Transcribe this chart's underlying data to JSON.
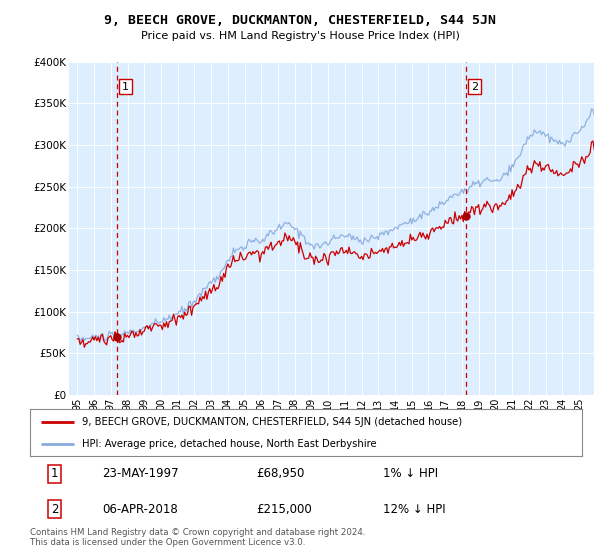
{
  "title": "9, BEECH GROVE, DUCKMANTON, CHESTERFIELD, S44 5JN",
  "subtitle": "Price paid vs. HM Land Registry's House Price Index (HPI)",
  "property_label": "9, BEECH GROVE, DUCKMANTON, CHESTERFIELD, S44 5JN (detached house)",
  "hpi_label": "HPI: Average price, detached house, North East Derbyshire",
  "transaction1_date": "23-MAY-1997",
  "transaction1_price": 68950,
  "transaction1_pct": "1% ↓ HPI",
  "transaction2_date": "06-APR-2018",
  "transaction2_price": 215000,
  "transaction2_pct": "12% ↓ HPI",
  "footer": "Contains HM Land Registry data © Crown copyright and database right 2024.\nThis data is licensed under the Open Government Licence v3.0.",
  "ylim": [
    0,
    400000
  ],
  "yticks": [
    0,
    50000,
    100000,
    150000,
    200000,
    250000,
    300000,
    350000,
    400000
  ],
  "ytick_labels": [
    "£0",
    "£50K",
    "£100K",
    "£150K",
    "£200K",
    "£250K",
    "£300K",
    "£350K",
    "£400K"
  ],
  "property_color": "#cc0000",
  "hpi_color": "#88aadd",
  "vline_color": "#cc0000",
  "dot_color": "#aa0000",
  "bg_color": "#ddeeff",
  "transaction1_x": 1997.38,
  "transaction2_x": 2018.26,
  "xstart": 1995,
  "xend": 2025
}
